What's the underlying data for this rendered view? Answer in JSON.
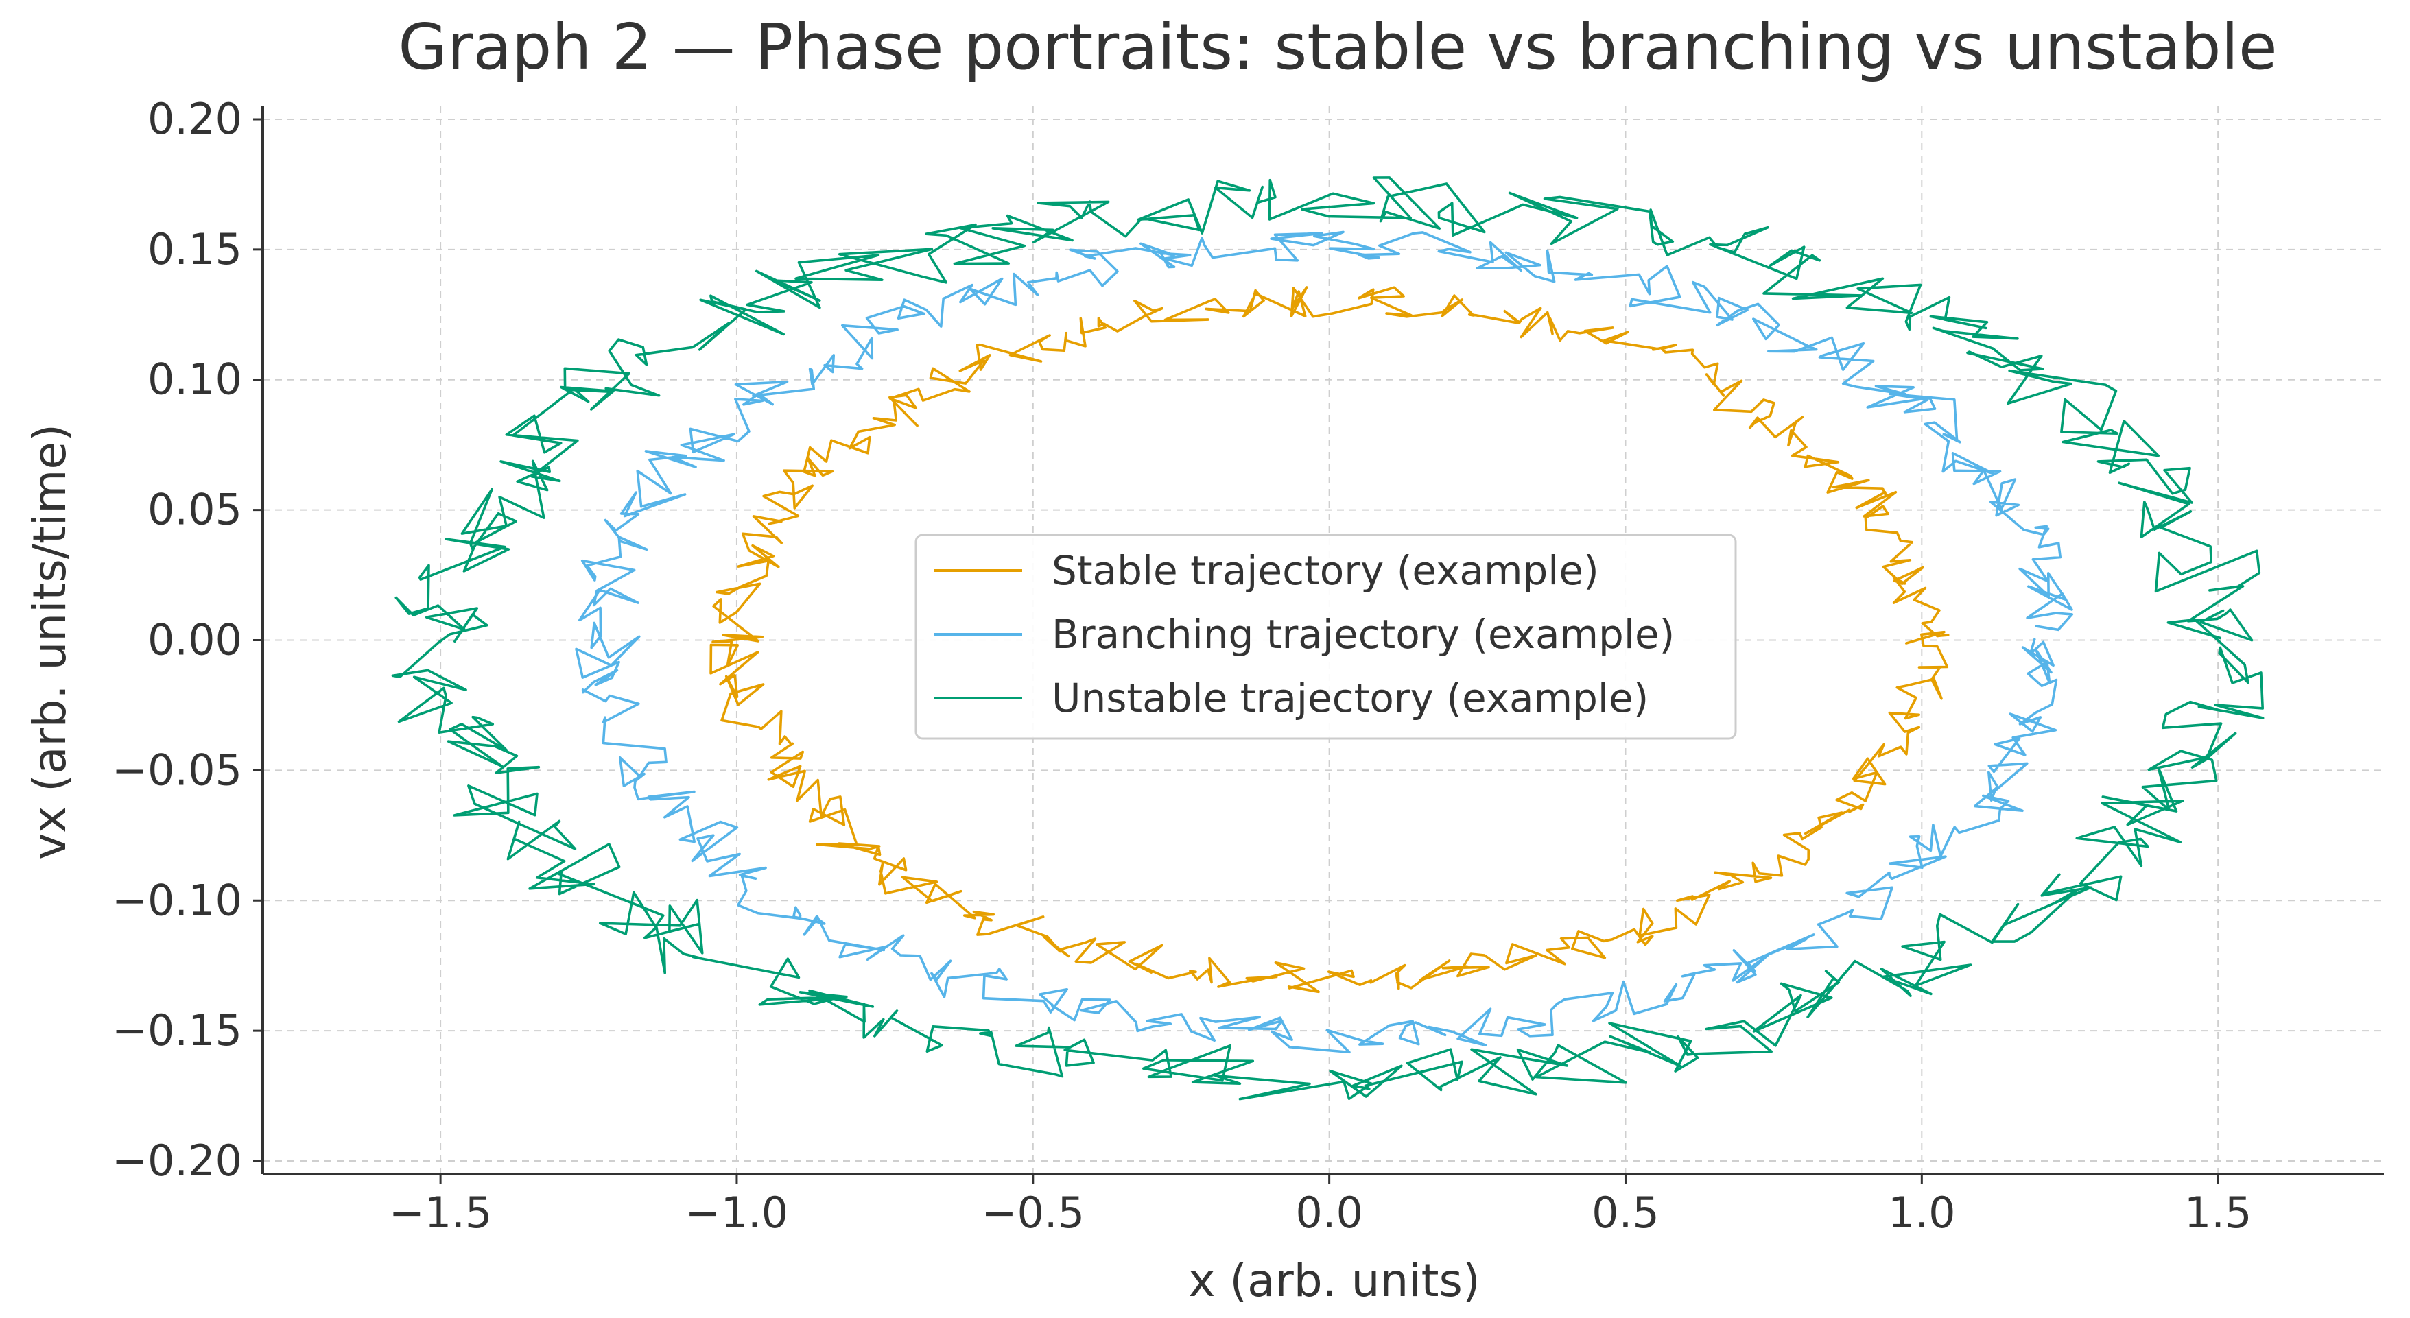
{
  "chart_data": {
    "type": "line",
    "title": "Graph 2 — Phase portraits: stable vs branching vs unstable",
    "xlabel": "x (arb. units)",
    "ylabel": "vx (arb. units/time)",
    "xlim": [
      -1.8,
      1.78
    ],
    "ylim": [
      -0.205,
      0.205
    ],
    "x_ticks": [
      -1.5,
      -1.0,
      -0.5,
      0.0,
      0.5,
      1.0,
      1.5
    ],
    "x_tick_labels": [
      "−1.5",
      "−1.0",
      "−0.5",
      "0.0",
      "0.5",
      "1.0",
      "1.5"
    ],
    "y_ticks": [
      0.2,
      0.15,
      0.1,
      0.05,
      0.0,
      -0.05,
      -0.1,
      -0.15,
      -0.2
    ],
    "y_tick_labels": [
      "0.20",
      "0.15",
      "0.10",
      "0.05",
      "0.00",
      "−0.05",
      "−0.10",
      "−0.15",
      "−0.20"
    ],
    "grid": true,
    "legend": {
      "position": "center",
      "entries": [
        "Stable trajectory (example)",
        "Branching trajectory (example)",
        "Unstable trajectory (example)"
      ]
    },
    "series": [
      {
        "name": "Stable trajectory (example)",
        "color": "#E69F00",
        "shape": "noisy closed orbit",
        "x_amplitude": 1.0,
        "vx_amplitude": 0.13,
        "noise_vx": 0.012
      },
      {
        "name": "Branching trajectory (example)",
        "color": "#56B4E9",
        "shape": "noisy closed orbit",
        "x_amplitude": 1.22,
        "vx_amplitude": 0.152,
        "noise_vx": 0.014
      },
      {
        "name": "Unstable trajectory (example)",
        "color": "#009E73",
        "shape": "noisy closed orbit",
        "x_amplitude": 1.5,
        "vx_amplitude": 0.168,
        "noise_vx": 0.02
      }
    ]
  }
}
